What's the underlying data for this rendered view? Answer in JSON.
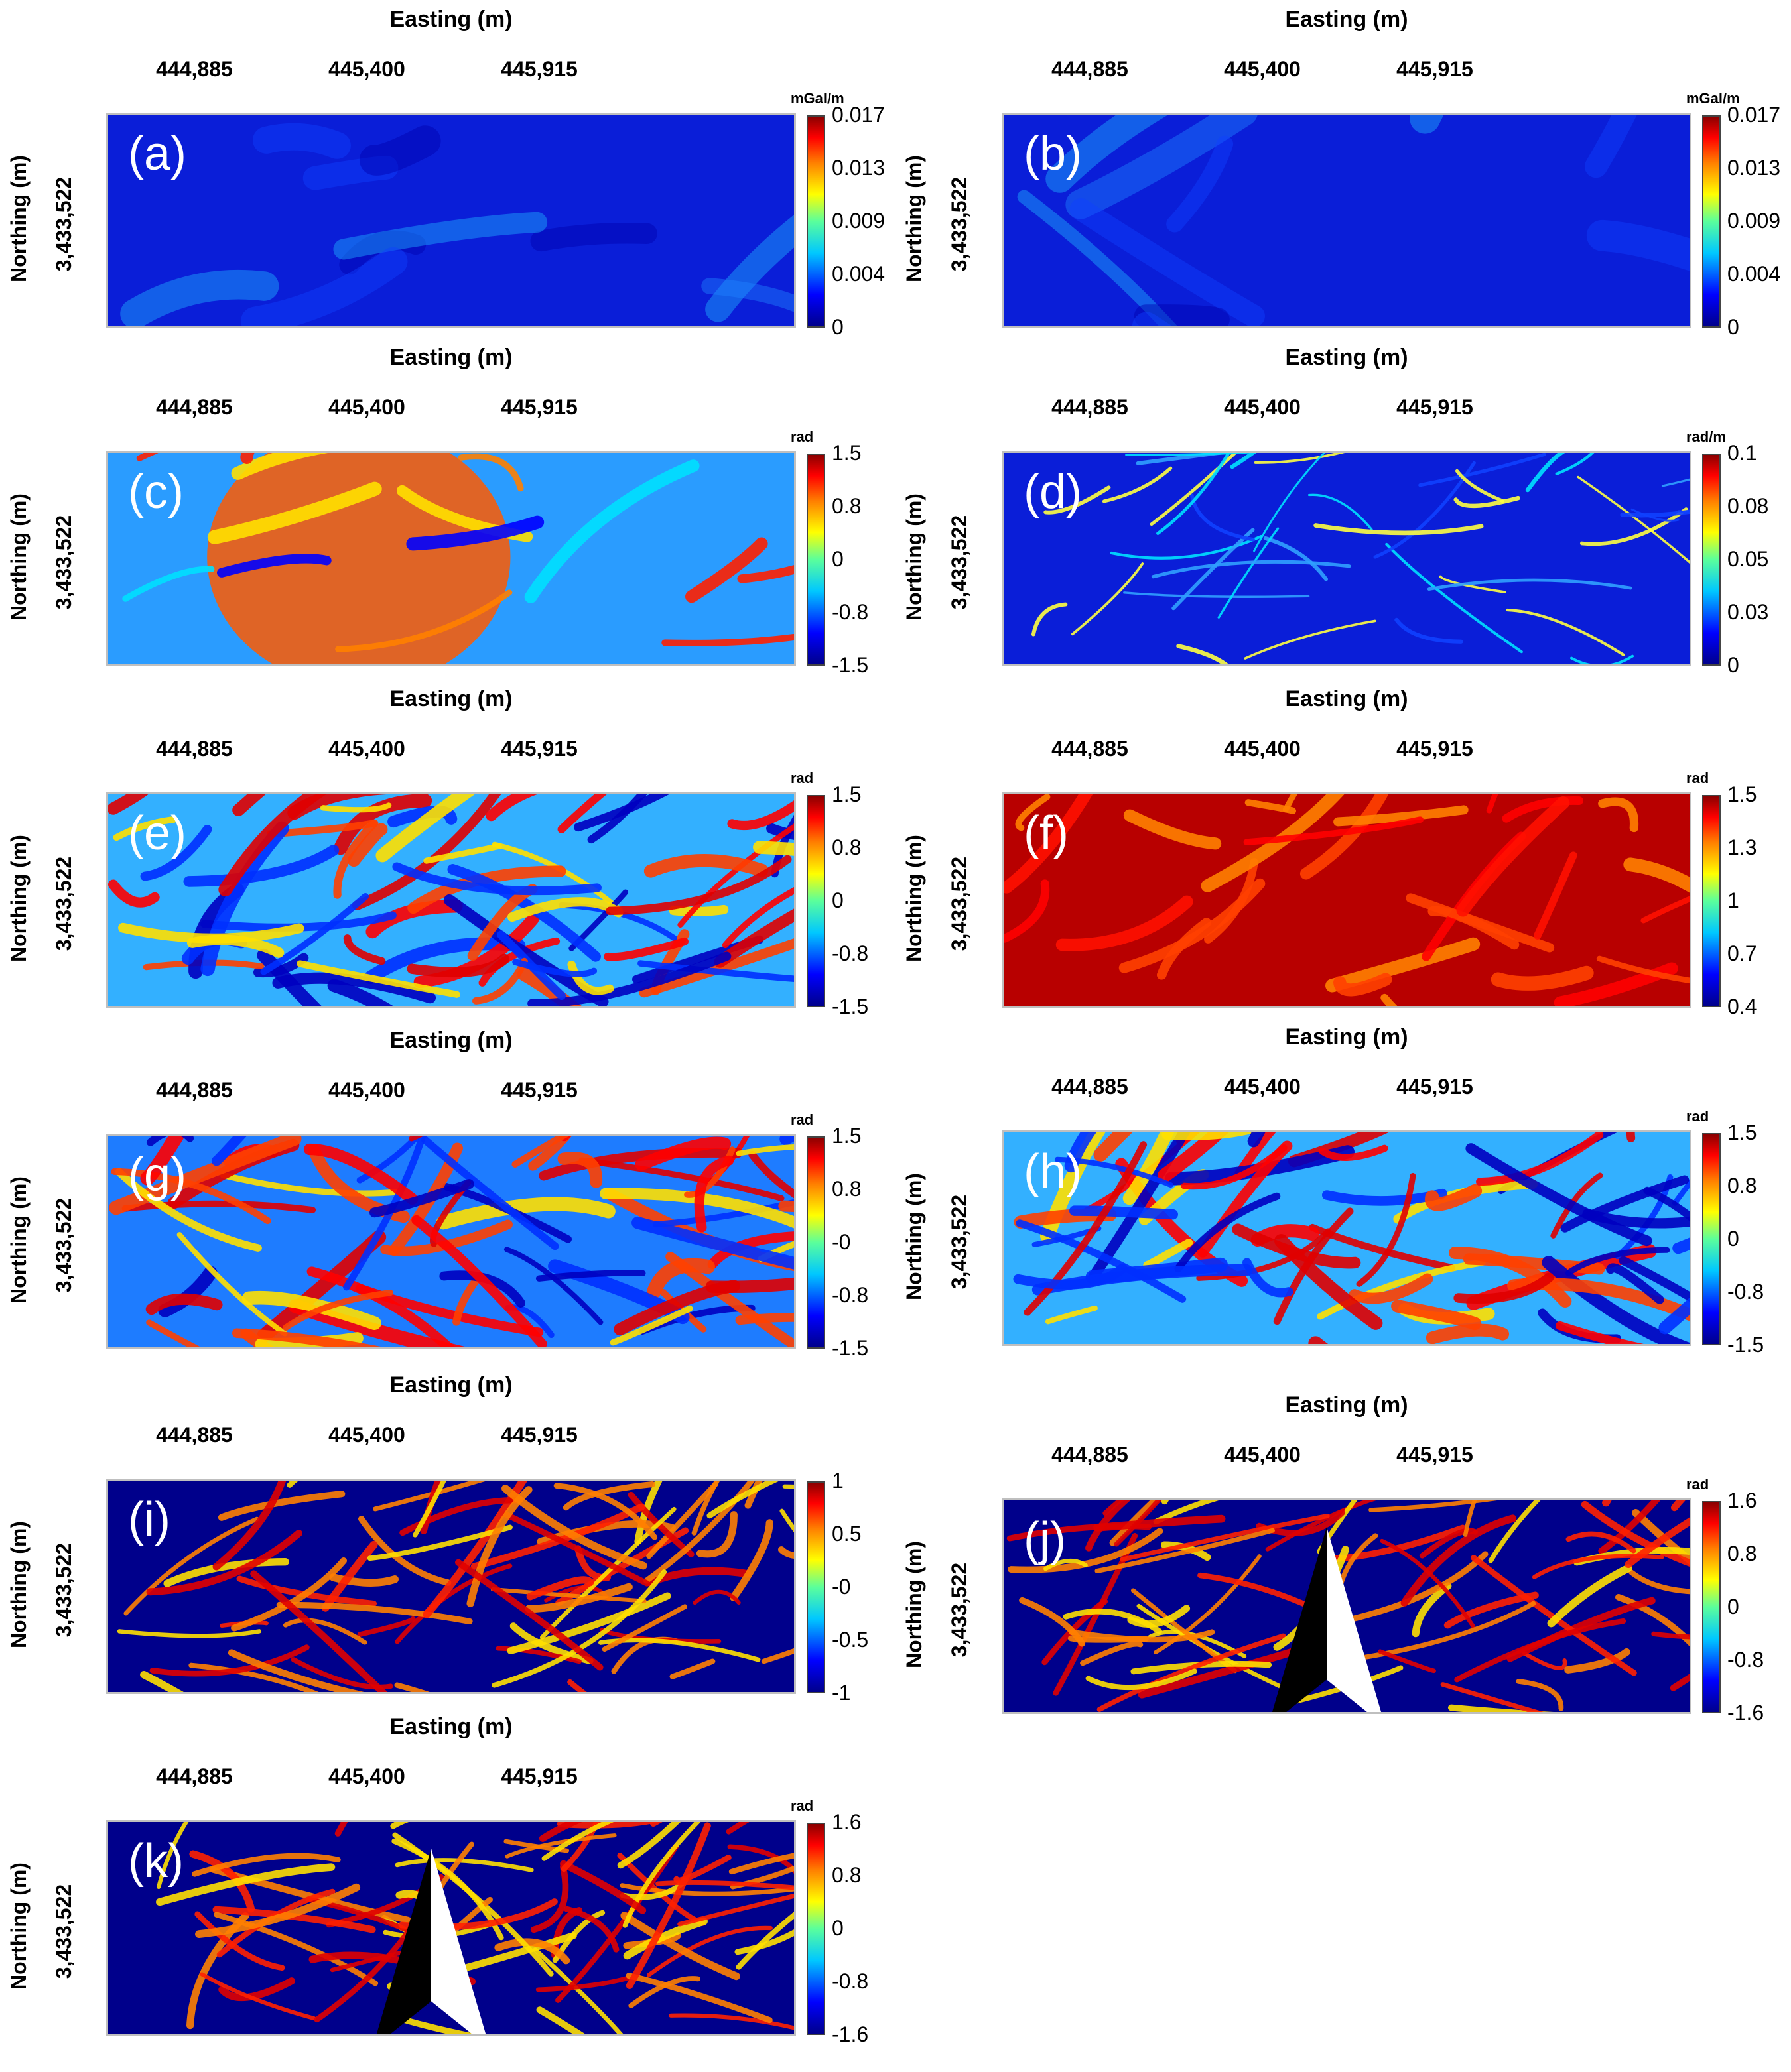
{
  "figure": {
    "x_axis_title": "Easting (m)",
    "y_axis_title": "Northing (m)",
    "x_ticks": [
      "444,885",
      "445,400",
      "445,915"
    ],
    "y_tick": "3,433,522"
  },
  "panels": [
    {
      "id": "a",
      "label": "(a)",
      "unit": "mGal/m",
      "ticks": [
        "0.017",
        "0.013",
        "0.009",
        "0.004",
        "0"
      ],
      "background": "#0a1ed8",
      "style": "smooth-low",
      "north_arrow": false
    },
    {
      "id": "b",
      "label": "(b)",
      "unit": "mGal/m",
      "ticks": [
        "0.017",
        "0.013",
        "0.009",
        "0.004",
        "0"
      ],
      "background": "#0a1ed8",
      "style": "smooth-low",
      "north_arrow": false
    },
    {
      "id": "c",
      "label": "(c)",
      "unit": "rad",
      "ticks": [
        "1.5",
        "0.8",
        "0",
        "-0.8",
        "-1.5"
      ],
      "background": "#2a9cff",
      "style": "broad",
      "north_arrow": false
    },
    {
      "id": "d",
      "label": "(d)",
      "unit": "rad/m",
      "ticks": [
        "0.1",
        "0.08",
        "0.05",
        "0.03",
        "0"
      ],
      "background": "#0a1ed8",
      "style": "spots",
      "north_arrow": false
    },
    {
      "id": "e",
      "label": "(e)",
      "unit": "rad",
      "ticks": [
        "1.5",
        "0.8",
        "0",
        "-0.8",
        "-1.5"
      ],
      "background": "#33b0ff",
      "style": "lineaments",
      "north_arrow": false
    },
    {
      "id": "f",
      "label": "(f)",
      "unit": "rad",
      "ticks": [
        "1.5",
        "1.3",
        "1",
        "0.7",
        "0.4"
      ],
      "background": "#b80000",
      "style": "saturated",
      "north_arrow": false
    },
    {
      "id": "g",
      "label": "(g)",
      "unit": "rad",
      "ticks": [
        "1.5",
        "0.8",
        "-0",
        "-0.8",
        "-1.5"
      ],
      "background": "#1e7cff",
      "style": "lineaments",
      "north_arrow": false
    },
    {
      "id": "h",
      "label": "(h)",
      "unit": "rad",
      "ticks": [
        "1.5",
        "0.8",
        "0",
        "-0.8",
        "-1.5"
      ],
      "background": "#33b0ff",
      "style": "lineaments",
      "north_arrow": false
    },
    {
      "id": "i",
      "label": "(i)",
      "unit": "",
      "ticks": [
        "1",
        "0.5",
        "-0",
        "-0.5",
        "-1"
      ],
      "background": "#00008b",
      "style": "edges",
      "north_arrow": false
    },
    {
      "id": "j",
      "label": "(j)",
      "unit": "rad",
      "ticks": [
        "1.6",
        "0.8",
        "0",
        "-0.8",
        "-1.6"
      ],
      "background": "#00008b",
      "style": "edges",
      "north_arrow": true
    },
    {
      "id": "k",
      "label": "(k)",
      "unit": "rad",
      "ticks": [
        "1.6",
        "0.8",
        "0",
        "-0.8",
        "-1.6"
      ],
      "background": "#00008b",
      "style": "edges",
      "north_arrow": true
    }
  ],
  "chart_data": {
    "type": "heatmap",
    "xlabel": "Easting (m)",
    "ylabel": "Northing (m)",
    "x_tick_values": [
      444885,
      445400,
      445915
    ],
    "y_tick_values": [
      3433522
    ],
    "colormap": "jet",
    "panels": [
      {
        "label": "(a)",
        "unit": "mGal/m",
        "range": [
          0,
          0.017
        ]
      },
      {
        "label": "(b)",
        "unit": "mGal/m",
        "range": [
          0,
          0.017
        ]
      },
      {
        "label": "(c)",
        "unit": "rad",
        "range": [
          -1.5,
          1.5
        ]
      },
      {
        "label": "(d)",
        "unit": "rad/m",
        "range": [
          0,
          0.1
        ]
      },
      {
        "label": "(e)",
        "unit": "rad",
        "range": [
          -1.5,
          1.5
        ]
      },
      {
        "label": "(f)",
        "unit": "rad",
        "range": [
          0.4,
          1.5
        ]
      },
      {
        "label": "(g)",
        "unit": "rad",
        "range": [
          -1.5,
          1.5
        ]
      },
      {
        "label": "(h)",
        "unit": "rad",
        "range": [
          -1.5,
          1.5
        ]
      },
      {
        "label": "(i)",
        "unit": "",
        "range": [
          -1,
          1
        ]
      },
      {
        "label": "(j)",
        "unit": "rad",
        "range": [
          -1.6,
          1.6
        ]
      },
      {
        "label": "(k)",
        "unit": "rad",
        "range": [
          -1.6,
          1.6
        ]
      }
    ]
  }
}
